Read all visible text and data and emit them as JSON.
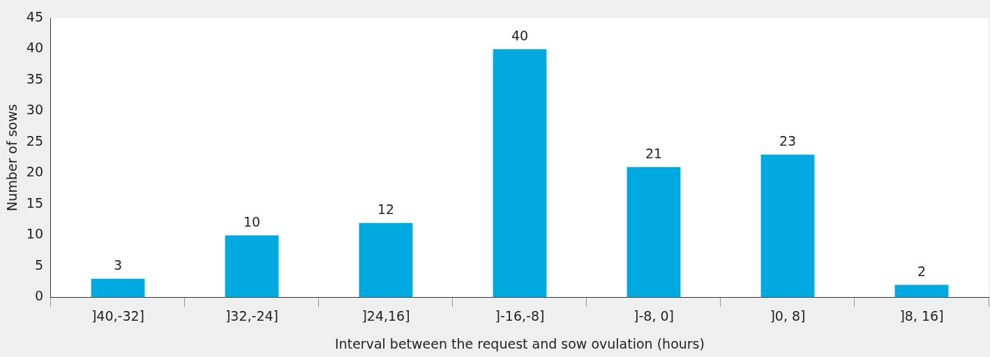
{
  "chart_data": {
    "type": "bar",
    "xlabel": "Interval between the request and sow ovulation (hours)",
    "ylabel": "Number of sows",
    "categories": [
      "]40,-32]",
      "]32,-24]",
      "]24,16]",
      "]-16,-8]",
      "]-8, 0]",
      "]0, 8]",
      "]8, 16]"
    ],
    "values": [
      3,
      10,
      12,
      40,
      21,
      23,
      2
    ],
    "color": "#00a9e0",
    "ylim": [
      0,
      45
    ],
    "yticks": [
      0,
      5,
      10,
      15,
      20,
      25,
      30,
      35,
      40,
      45
    ],
    "grid": false,
    "legend": false,
    "data_labels": true
  }
}
